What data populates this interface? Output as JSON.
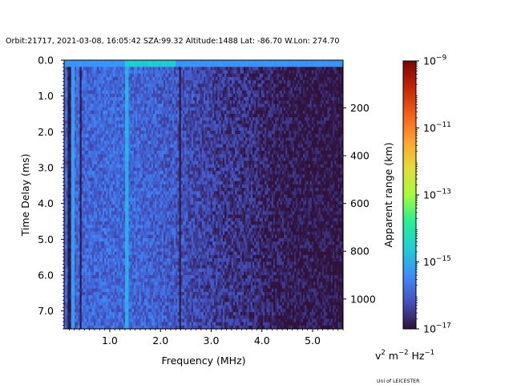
{
  "chart_data": {
    "type": "heatmap",
    "title": "Orbit:21717, 2021-03-08, 16:05:42 SZA:99.32 Altitude:1488 Lat: -86.70 W.Lon: 274.70",
    "xlabel": "Frequency (MHz)",
    "ylabel": "Time Delay (ms)",
    "y2label": "Apparent range (km)",
    "xlim": [
      0.1,
      5.6
    ],
    "ylim": [
      7.5,
      0.0
    ],
    "y2lim": [
      1125,
      0
    ],
    "x_ticks": [
      1.0,
      2.0,
      3.0,
      4.0,
      5.0
    ],
    "x_tick_labels": [
      "1.0",
      "2.0",
      "3.0",
      "4.0",
      "5.0"
    ],
    "y_ticks": [
      0.0,
      1.0,
      2.0,
      3.0,
      4.0,
      5.0,
      6.0,
      7.0
    ],
    "y_tick_labels": [
      "0.0",
      "1.0",
      "2.0",
      "3.0",
      "4.0",
      "5.0",
      "6.0",
      "7.0"
    ],
    "y2_ticks": [
      200,
      400,
      600,
      800,
      1000
    ],
    "y2_tick_labels": [
      "200",
      "400",
      "600",
      "800",
      "1000"
    ],
    "colorbar": {
      "scale": "log",
      "colormap": "turbo",
      "min": 1e-17,
      "max": 1e-09,
      "tick_exponents": [
        -9,
        -11,
        -13,
        -15,
        -17
      ],
      "tick_labels": [
        "10",
        "10",
        "10",
        "10",
        "10"
      ],
      "tick_sups": [
        "−9",
        "−11",
        "−13",
        "−15",
        "−17"
      ],
      "units": {
        "parts": [
          "v",
          "2",
          " m",
          "−2",
          " Hz",
          "−1"
        ]
      }
    },
    "grid": {
      "n_freq": 160,
      "n_delay": 80
    },
    "background_log10": -16.4,
    "freq_profile": [
      {
        "f": 0.1,
        "log10": -15.9
      },
      {
        "f": 0.5,
        "log10": -15.9
      },
      {
        "f": 1.0,
        "log10": -15.9
      },
      {
        "f": 1.5,
        "log10": -15.9
      },
      {
        "f": 2.0,
        "log10": -16.0
      },
      {
        "f": 2.3,
        "log10": -16.1
      },
      {
        "f": 2.7,
        "log10": -16.3
      },
      {
        "f": 3.2,
        "log10": -16.5
      },
      {
        "f": 3.8,
        "log10": -16.6
      },
      {
        "f": 4.2,
        "log10": -16.8
      },
      {
        "f": 4.7,
        "log10": -16.9
      },
      {
        "f": 5.6,
        "log10": -17.0
      }
    ],
    "features": [
      {
        "kind": "surface_line",
        "delay_ms": 0.1,
        "f_start": 0.1,
        "f_end": 5.6,
        "log10": -15.3
      },
      {
        "kind": "bright_patch",
        "delay_ms": 0.1,
        "f_start": 1.3,
        "f_end": 2.3,
        "log10": -14.6
      },
      {
        "kind": "bright_column",
        "f": 1.33,
        "log10": -15.0
      },
      {
        "kind": "bright_column",
        "f": 0.28,
        "log10": -15.2
      },
      {
        "kind": "dark_column",
        "f": 2.38,
        "log10": -17.0
      },
      {
        "kind": "dark_column",
        "f": 0.42,
        "log10": -16.9
      },
      {
        "kind": "dark_column",
        "f": 0.2,
        "log10": -16.9
      }
    ],
    "credit": "Uni of LEICESTER"
  }
}
